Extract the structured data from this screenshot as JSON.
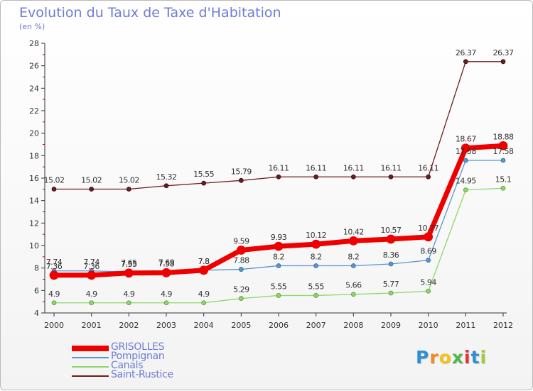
{
  "chart_data": {
    "type": "line",
    "title": "Evolution du Taux de Taxe d'Habitation",
    "subtitle": "(en %)",
    "xlabel": "",
    "ylabel": "",
    "x": [
      "2000",
      "2001",
      "2002",
      "2003",
      "2004",
      "2005",
      "2006",
      "2007",
      "2008",
      "2009",
      "2010",
      "2011",
      "2012"
    ],
    "ylim": [
      4,
      28
    ],
    "yticks": [
      4,
      6,
      8,
      10,
      12,
      14,
      16,
      18,
      20,
      22,
      24,
      26,
      28
    ],
    "grid": false,
    "legend_position": "bottom-left",
    "series": [
      {
        "name": "Saint-Rustice",
        "color": "#6b1d1d",
        "values": [
          15.02,
          15.02,
          15.02,
          15.32,
          15.55,
          15.79,
          16.11,
          16.11,
          16.11,
          16.11,
          16.11,
          26.37,
          26.37
        ],
        "labels": [
          "15.02",
          "15.02",
          "15.02",
          "15.32",
          "15.55",
          "15.79",
          "16.11",
          "16.11",
          "16.11",
          "16.11",
          "16.11",
          "26.37",
          "26.37"
        ]
      },
      {
        "name": "Canals",
        "color": "#8ed66a",
        "values": [
          4.9,
          4.9,
          4.9,
          4.9,
          4.9,
          5.29,
          5.55,
          5.55,
          5.66,
          5.77,
          5.94,
          14.95,
          15.1
        ],
        "labels": [
          "4.9",
          "4.9",
          "4.9",
          "4.9",
          "4.9",
          "5.29",
          "5.55",
          "5.55",
          "5.66",
          "5.77",
          "5.94",
          "14.95",
          "15.1"
        ]
      },
      {
        "name": "Pompignan",
        "color": "#5b95cf",
        "values": [
          7.74,
          7.74,
          7.65,
          7.69,
          7.8,
          7.88,
          8.2,
          8.2,
          8.2,
          8.36,
          8.69,
          17.58,
          17.58
        ],
        "labels": [
          "7.74",
          "7.74",
          "7.65",
          "7.69",
          "7.8",
          "7.88",
          "8.2",
          "8.2",
          "8.2",
          "8.36",
          "8.69",
          "17.58",
          "17.58"
        ]
      },
      {
        "name": "GRISOLLES",
        "color": "#ee0000",
        "values": [
          7.36,
          7.36,
          7.55,
          7.58,
          7.8,
          9.59,
          9.93,
          10.12,
          10.42,
          10.57,
          10.77,
          18.67,
          18.88
        ],
        "labels": [
          "7.36",
          "7.36",
          "7.55",
          "7.58",
          "7.8",
          "9.59",
          "9.93",
          "10.12",
          "10.42",
          "10.57",
          "10.77",
          "18.67",
          "18.88"
        ]
      }
    ]
  },
  "legend": {
    "items": [
      {
        "name": "GRISOLLES",
        "color": "#ee0000"
      },
      {
        "name": "Pompignan",
        "color": "#5b95cf"
      },
      {
        "name": "Canals",
        "color": "#8ed66a"
      },
      {
        "name": "Saint-Rustice",
        "color": "#6b1d1d"
      }
    ]
  },
  "logo": {
    "letters": [
      "P",
      "r",
      "o",
      "x",
      "i",
      "t",
      "i"
    ],
    "colors": [
      "#2d8fd6",
      "#f28a1e",
      "#f2c31a",
      "#4fb848",
      "#e4322b",
      "#2d8fd6",
      "#a6cc3a"
    ]
  }
}
